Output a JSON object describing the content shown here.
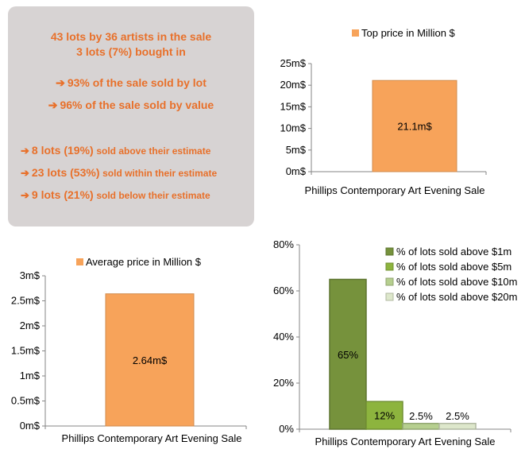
{
  "summary": {
    "line1": "43 lots by 36 artists in the sale",
    "line2": "3 lots (7%) bought in",
    "sold_by_lot": "93% of the sale sold by lot",
    "sold_by_value": "96% of the sale sold by value",
    "above_estimate_lots": "8 lots (19%)",
    "above_estimate_text": "sold above their estimate",
    "within_estimate_lots": "23 lots (53%)",
    "within_estimate_text": "sold within their estimate",
    "below_estimate_lots": "9 lots (21%)",
    "below_estimate_text": "sold below their estimate",
    "arrow_glyph": "➔",
    "accent_color": "#e8702a"
  },
  "chart_data": [
    {
      "type": "bar",
      "legend": "Top price in Million $",
      "categories": [
        "Phillips Contemporary Art Evening Sale"
      ],
      "values": [
        21.1
      ],
      "data_labels": [
        "21.1m$"
      ],
      "yticks": [
        "0m$",
        "5m$",
        "10m$",
        "15m$",
        "20m$",
        "25m$"
      ],
      "ylim": [
        0,
        25
      ],
      "color": "#f7a35a",
      "legend_position": "top"
    },
    {
      "type": "bar",
      "legend": "Average price in Million $",
      "categories": [
        "Phillips Contemporary Art Evening Sale"
      ],
      "values": [
        2.64
      ],
      "data_labels": [
        "2.64m$"
      ],
      "yticks": [
        "0m$",
        "0.5m$",
        "1m$",
        "1.5m$",
        "2m$",
        "2.5m$",
        "3m$"
      ],
      "ylim": [
        0,
        3
      ],
      "color": "#f7a35a",
      "legend_position": "top"
    },
    {
      "type": "bar",
      "categories": [
        "Phillips Contemporary Art Evening Sale"
      ],
      "series": [
        {
          "name": "% of lots sold above $1m",
          "value": 65,
          "label": "65%",
          "color": "#76923c"
        },
        {
          "name": "% of lots sold above $5m",
          "value": 12,
          "label": "12%",
          "color": "#8db43e"
        },
        {
          "name": "% of lots sold above $10m",
          "value": 2.5,
          "label": "2.5%",
          "color": "#b6cf8f"
        },
        {
          "name": "% of lots sold above $20m",
          "value": 2.5,
          "label": "2.5%",
          "color": "#dde7cb"
        }
      ],
      "yticks": [
        "0%",
        "20%",
        "40%",
        "60%",
        "80%"
      ],
      "ylim": [
        0,
        80
      ],
      "legend_position": "top-right"
    }
  ]
}
